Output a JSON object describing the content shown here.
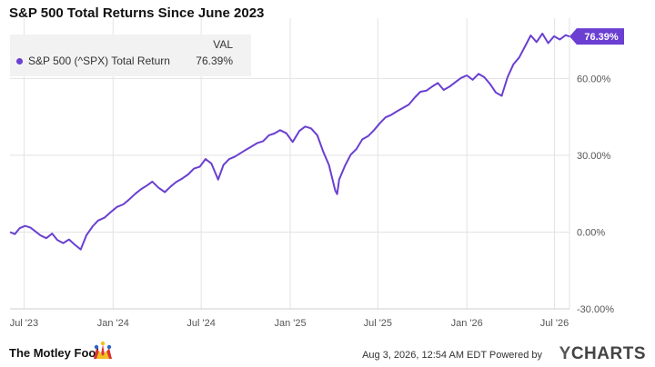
{
  "title": "S&P 500 Total Returns Since June 2023",
  "legend": {
    "header": "VAL",
    "series_name": "S&P 500 (^SPX) Total Return",
    "value": "76.39%"
  },
  "last_value_label": "76.39%",
  "footer": {
    "brand": "The Motley Fool.",
    "timestamp": "Aug 3, 2026, 12:54 AM EDT Powered by",
    "provider": "CHARTS",
    "provider_mark": "Y"
  },
  "colors": {
    "series": "#6a3fd1",
    "grid": "#e3e3e3",
    "axis_text": "#555555"
  },
  "chart_data": {
    "type": "line",
    "title": "S&P 500 Total Returns Since June 2023",
    "y_unit": "%",
    "ylim": [
      -30,
      80
    ],
    "y_ticks": [
      -30,
      0,
      30,
      60
    ],
    "y_tick_labels": [
      "-30.00%",
      "0.00%",
      "30.00%",
      "60.00%"
    ],
    "x_range": [
      "2023-06-02",
      "2026-08-01"
    ],
    "x_ticks": [
      "2023-07-01",
      "2024-01-01",
      "2024-07-01",
      "2025-01-01",
      "2025-07-01",
      "2026-01-01",
      "2026-07-01"
    ],
    "x_tick_labels": [
      "Jul '23",
      "Jan '24",
      "Jul '24",
      "Jan '25",
      "Jul '25",
      "Jan '26",
      "Jul '26"
    ],
    "grid": true,
    "legend_position": "top-left",
    "series": [
      {
        "name": "S&P 500 (^SPX) Total Return",
        "x": [
          "2023-06-02",
          "2023-06-12",
          "2023-06-22",
          "2023-07-03",
          "2023-07-14",
          "2023-07-25",
          "2023-08-04",
          "2023-08-16",
          "2023-08-28",
          "2023-09-08",
          "2023-09-20",
          "2023-10-02",
          "2023-10-13",
          "2023-10-26",
          "2023-11-07",
          "2023-11-20",
          "2023-12-01",
          "2023-12-14",
          "2023-12-27",
          "2024-01-09",
          "2024-01-22",
          "2024-02-02",
          "2024-02-15",
          "2024-02-28",
          "2024-03-11",
          "2024-03-22",
          "2024-04-04",
          "2024-04-17",
          "2024-04-29",
          "2024-05-10",
          "2024-05-22",
          "2024-06-04",
          "2024-06-16",
          "2024-06-28",
          "2024-07-10",
          "2024-07-22",
          "2024-08-05",
          "2024-08-16",
          "2024-08-28",
          "2024-09-09",
          "2024-09-20",
          "2024-10-02",
          "2024-10-14",
          "2024-10-25",
          "2024-11-06",
          "2024-11-18",
          "2024-11-29",
          "2024-12-11",
          "2024-12-24",
          "2025-01-06",
          "2025-01-20",
          "2025-02-01",
          "2025-02-13",
          "2025-02-26",
          "2025-03-10",
          "2025-03-22",
          "2025-04-04",
          "2025-04-08",
          "2025-04-12",
          "2025-04-24",
          "2025-05-06",
          "2025-05-18",
          "2025-05-30",
          "2025-06-11",
          "2025-06-23",
          "2025-07-05",
          "2025-07-17",
          "2025-07-29",
          "2025-08-10",
          "2025-08-22",
          "2025-09-03",
          "2025-09-15",
          "2025-09-27",
          "2025-10-09",
          "2025-10-21",
          "2025-11-02",
          "2025-11-14",
          "2025-11-26",
          "2025-12-08",
          "2025-12-20",
          "2026-01-01",
          "2026-01-13",
          "2026-01-25",
          "2026-02-06",
          "2026-02-18",
          "2026-03-02",
          "2026-03-14",
          "2026-03-26",
          "2026-04-07",
          "2026-04-19",
          "2026-05-01",
          "2026-05-13",
          "2026-05-25",
          "2026-06-06",
          "2026-06-18",
          "2026-06-30",
          "2026-07-12",
          "2026-07-24",
          "2026-08-01"
        ],
        "y": [
          0.0,
          -0.8,
          1.5,
          2.4,
          1.8,
          0.2,
          -1.3,
          -2.4,
          -0.6,
          -3.1,
          -4.3,
          -2.9,
          -4.8,
          -6.8,
          -1.2,
          2.3,
          4.5,
          5.6,
          7.8,
          9.8,
          10.8,
          12.5,
          14.8,
          16.8,
          18.2,
          19.7,
          17.3,
          15.6,
          17.8,
          19.5,
          20.8,
          22.5,
          24.8,
          25.5,
          28.5,
          26.8,
          20.5,
          26.2,
          28.5,
          29.5,
          30.8,
          32.2,
          33.5,
          34.8,
          35.5,
          37.8,
          38.5,
          39.8,
          38.6,
          35.2,
          39.5,
          41.2,
          40.5,
          37.8,
          31.5,
          26.2,
          16.2,
          14.8,
          20.5,
          25.8,
          30.2,
          32.5,
          36.2,
          37.5,
          39.8,
          42.5,
          44.8,
          45.8,
          47.2,
          48.5,
          49.8,
          52.5,
          54.8,
          55.2,
          56.8,
          58.2,
          55.5,
          56.8,
          58.5,
          60.2,
          61.2,
          59.5,
          61.8,
          60.5,
          57.8,
          54.5,
          53.2,
          60.5,
          65.5,
          68.2,
          72.5,
          76.8,
          74.2,
          77.5,
          73.8,
          76.5,
          75.2,
          76.9,
          76.39
        ]
      }
    ]
  }
}
